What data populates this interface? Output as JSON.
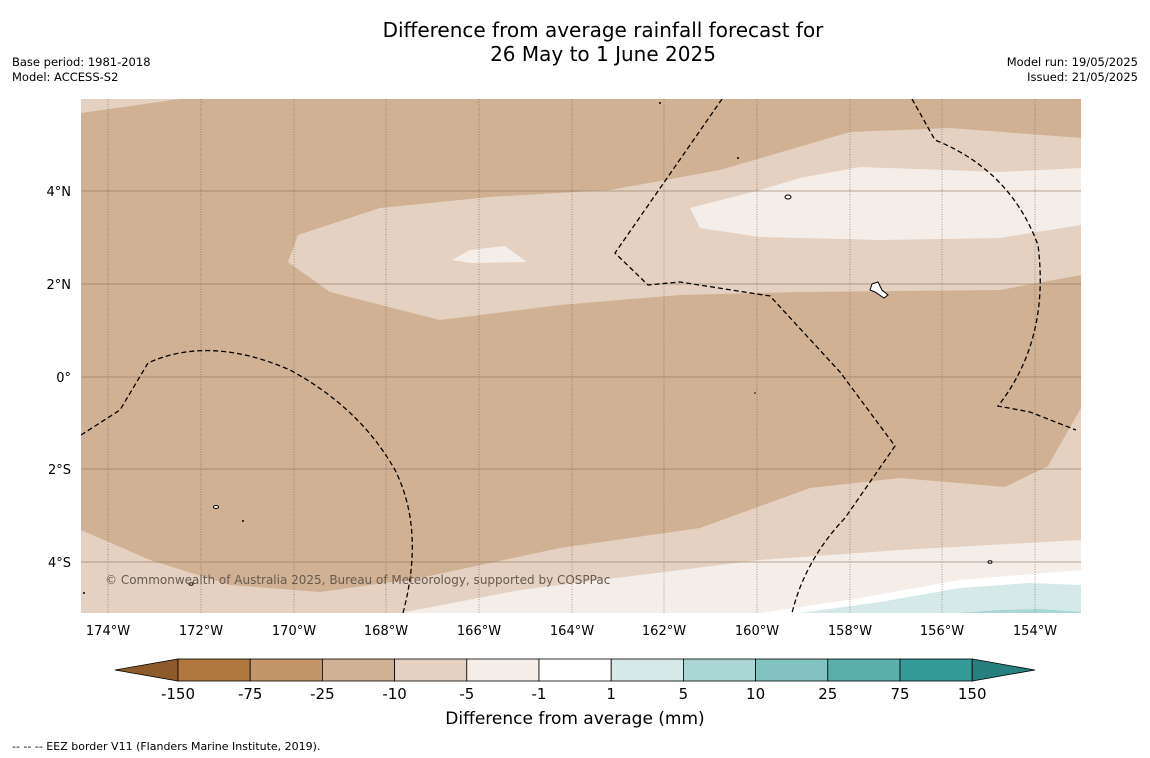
{
  "title_line1": "Difference from average rainfall forecast for",
  "title_line2": "26 May to 1 June 2025",
  "base_period": "Base period: 1981-2018",
  "model": "Model: ACCESS-S2",
  "model_run": "Model run: 19/05/2025",
  "issued": "Issued: 21/05/2025",
  "copyright": "© Commonwealth of Australia 2025, Bureau of Meteorology, supported by COSPPac",
  "footer_legend": "--  --  -- EEZ border V11 (Flanders Marine Institute, 2019).",
  "colorbar_title": "Difference from average (mm)",
  "map": {
    "lon_labels": [
      "174°W",
      "172°W",
      "170°W",
      "168°W",
      "166°W",
      "164°W",
      "162°W",
      "160°W",
      "158°W",
      "156°W",
      "154°W"
    ],
    "lat_labels": [
      "4°N",
      "2°N",
      "0°",
      "2°S",
      "4°S"
    ]
  },
  "colorbar": {
    "tick_labels": [
      "-150",
      "-75",
      "-25",
      "-10",
      "-5",
      "-1",
      "1",
      "5",
      "10",
      "25",
      "75",
      "150"
    ],
    "colors": [
      "#8c5a2b",
      "#b0773f",
      "#c4956b",
      "#d1b194",
      "#e4d1c1",
      "#f5ede8",
      "#ffffff",
      "#d5e9e8",
      "#aad6d6",
      "#82c3c1",
      "#5aaeac",
      "#349a97",
      "#28807e"
    ]
  }
}
